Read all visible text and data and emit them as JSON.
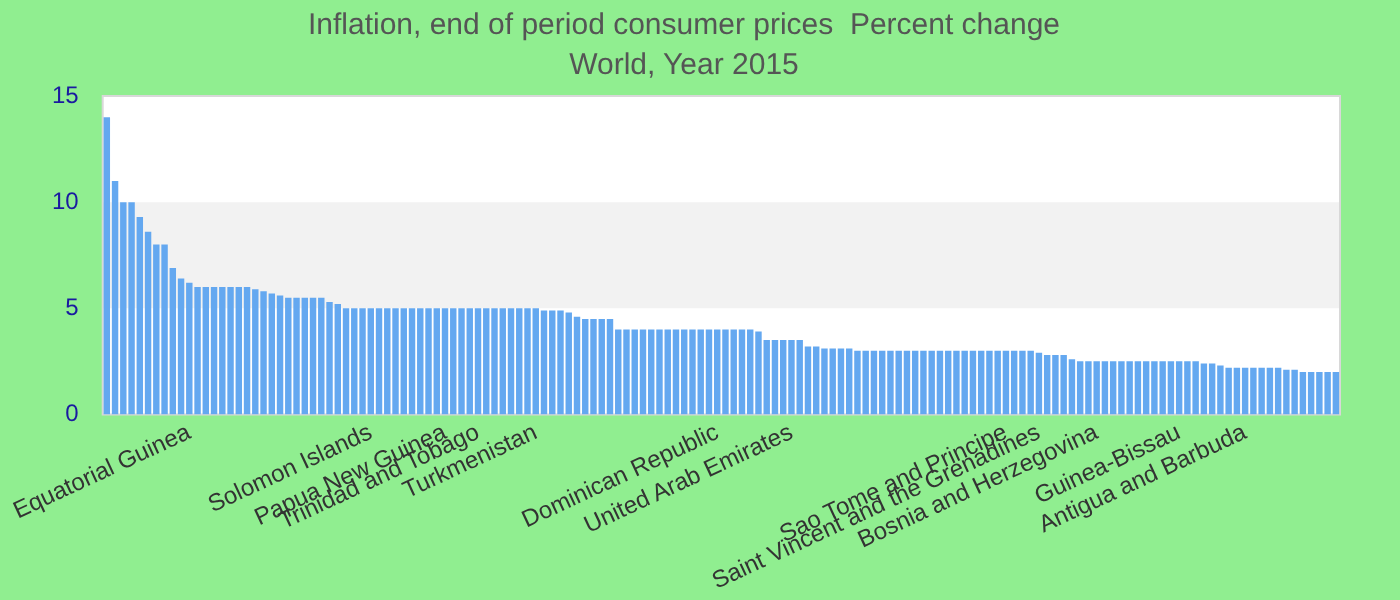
{
  "chart_data": {
    "type": "bar",
    "title": "Inflation, end of period consumer prices  Percent change",
    "subtitle": "World, Year 2015",
    "categories": [
      null,
      null,
      null,
      null,
      null,
      null,
      null,
      null,
      null,
      null,
      "Equatorial Guinea",
      null,
      null,
      null,
      null,
      null,
      null,
      null,
      null,
      null,
      null,
      null,
      null,
      null,
      null,
      null,
      null,
      null,
      null,
      null,
      null,
      null,
      "Solomon Islands",
      null,
      null,
      null,
      null,
      null,
      null,
      null,
      null,
      "Papua New Guinea",
      null,
      null,
      null,
      "Trinidad and Tobago",
      null,
      null,
      null,
      null,
      null,
      null,
      "Turkmenistan",
      null,
      null,
      null,
      null,
      null,
      null,
      null,
      null,
      null,
      null,
      null,
      null,
      null,
      null,
      null,
      null,
      null,
      null,
      null,
      null,
      null,
      "Dominican Republic",
      null,
      null,
      null,
      null,
      null,
      null,
      null,
      null,
      "United Arab Emirates",
      null,
      null,
      null,
      null,
      null,
      null,
      null,
      null,
      null,
      null,
      null,
      null,
      null,
      null,
      null,
      null,
      null,
      null,
      null,
      null,
      null,
      null,
      null,
      null,
      null,
      "Sao Tome and Principe",
      null,
      null,
      null,
      "Saint Vincent and the Grenadines",
      null,
      null,
      null,
      null,
      null,
      null,
      "Bosnia and Herzegovina",
      null,
      null,
      null,
      null,
      null,
      null,
      null,
      null,
      null,
      "Guinea-Bissau",
      null,
      null,
      null,
      null,
      null,
      null,
      null,
      "Antigua and Barbuda",
      null,
      null,
      null,
      null,
      null,
      null,
      null,
      null,
      null,
      null,
      null
    ],
    "values": [
      14,
      11,
      10,
      10,
      9.3,
      8.6,
      8,
      8,
      6.9,
      6.4,
      6.2,
      6,
      6,
      6,
      6,
      6,
      6,
      6,
      5.9,
      5.8,
      5.7,
      5.6,
      5.5,
      5.5,
      5.5,
      5.5,
      5.5,
      5.3,
      5.2,
      5,
      5,
      5,
      5,
      5,
      5,
      5,
      5,
      5,
      5,
      5,
      5,
      5,
      5,
      5,
      5,
      5,
      5,
      5,
      5,
      5,
      5,
      5,
      5,
      4.9,
      4.9,
      4.9,
      4.8,
      4.6,
      4.5,
      4.5,
      4.5,
      4.5,
      4,
      4,
      4,
      4,
      4,
      4,
      4,
      4,
      4,
      4,
      4,
      4,
      4,
      4,
      4,
      4,
      4,
      3.9,
      3.5,
      3.5,
      3.5,
      3.5,
      3.5,
      3.2,
      3.2,
      3.1,
      3.1,
      3.1,
      3.1,
      3,
      3,
      3,
      3,
      3,
      3,
      3,
      3,
      3,
      3,
      3,
      3,
      3,
      3,
      3,
      3,
      3,
      3,
      3,
      3,
      3,
      3,
      2.9,
      2.8,
      2.8,
      2.8,
      2.6,
      2.5,
      2.5,
      2.5,
      2.5,
      2.5,
      2.5,
      2.5,
      2.5,
      2.5,
      2.5,
      2.5,
      2.5,
      2.5,
      2.5,
      2.5,
      2.4,
      2.4,
      2.3,
      2.2,
      2.2,
      2.2,
      2.2,
      2.2,
      2.2,
      2.2,
      2.1,
      2.1,
      2,
      2,
      2,
      2,
      2
    ],
    "color": "#64a8f0",
    "ylim": [
      0,
      15
    ],
    "yticks": [
      0,
      5,
      10,
      15
    ],
    "bands": [
      {
        "axis": "y",
        "from": 5,
        "to": 10,
        "color": "#f2f2f2"
      }
    ],
    "legend": false
  }
}
